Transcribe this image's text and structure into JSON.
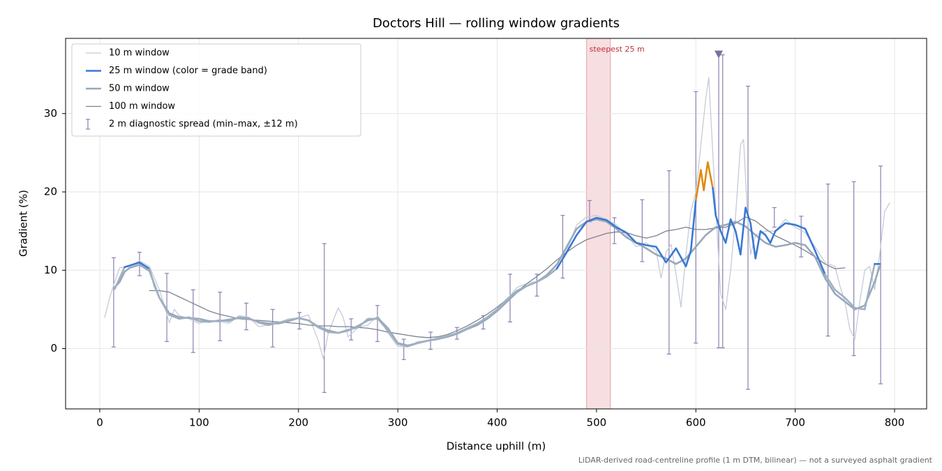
{
  "chart_data": {
    "type": "line",
    "title": "Doctors Hill — rolling window gradients",
    "x_label": "Distance uphill (m)",
    "y_label": "Gradient (%)",
    "note": "LiDAR-derived road-centreline profile (1 m DTM, bilinear) — not a surveyed asphalt gradient",
    "xlim": [
      -34.4,
      832.3
    ],
    "ylim": [
      -7.7,
      39.6
    ],
    "xticks": [
      0,
      100,
      200,
      300,
      400,
      500,
      600,
      700,
      800
    ],
    "yticks": [
      0,
      10,
      20,
      30
    ],
    "grid": true,
    "legend": "upper left",
    "series": [
      {
        "name": "10 m window",
        "color": "#c4cbd6",
        "width": 1.3,
        "x": [
          5,
          10,
          15,
          20,
          30,
          40,
          50,
          55,
          60,
          65,
          70,
          75,
          80,
          90,
          100,
          110,
          120,
          130,
          140,
          150,
          160,
          170,
          180,
          190,
          200,
          210,
          220,
          225,
          230,
          240,
          245,
          250,
          260,
          270,
          280,
          290,
          300,
          310,
          320,
          330,
          340,
          350,
          360,
          370,
          380,
          390,
          400,
          410,
          420,
          430,
          440,
          450,
          460,
          470,
          480,
          490,
          500,
          510,
          520,
          530,
          540,
          550,
          560,
          565,
          570,
          575,
          580,
          585,
          590,
          595,
          600,
          605,
          610,
          613,
          617,
          620,
          625,
          630,
          635,
          640,
          645,
          648,
          652,
          655,
          660,
          670,
          680,
          690,
          700,
          710,
          720,
          730,
          740,
          745,
          750,
          755,
          760,
          765,
          770,
          775,
          780,
          785,
          790,
          795
        ],
        "values": [
          4.0,
          6.5,
          8.5,
          10.3,
          10.5,
          11.2,
          10.5,
          9.0,
          7.5,
          5.5,
          3.3,
          5.0,
          4.2,
          3.8,
          3.2,
          3.6,
          3.5,
          3.2,
          4.2,
          4.0,
          2.8,
          3.0,
          3.3,
          3.8,
          3.9,
          4.3,
          1.0,
          -1.3,
          2.0,
          5.2,
          4.0,
          1.5,
          2.7,
          3.0,
          4.2,
          2.0,
          0.3,
          0.2,
          0.9,
          1.0,
          1.2,
          1.5,
          2.0,
          2.6,
          3.2,
          4.0,
          5.0,
          6.3,
          7.8,
          8.3,
          8.6,
          9.4,
          10.8,
          12.5,
          15.8,
          16.8,
          17.0,
          16.5,
          15.8,
          14.5,
          13.0,
          13.5,
          12.5,
          9.0,
          12.3,
          13.3,
          9.5,
          5.3,
          12.0,
          17.5,
          20.0,
          26.0,
          32.0,
          34.6,
          25.0,
          18.0,
          7.0,
          5.0,
          10.0,
          17.0,
          26.0,
          26.7,
          17.0,
          12.0,
          14.5,
          15.0,
          15.0,
          16.5,
          15.5,
          14.8,
          13.0,
          11.0,
          10.5,
          8.0,
          6.0,
          2.5,
          1.2,
          6.0,
          10.0,
          10.5,
          7.5,
          12.0,
          17.5,
          18.6
        ]
      },
      {
        "name": "25 m window (color = grade band)",
        "color": "#3a78d4",
        "width": 2.6,
        "band_thresholds": [
          10,
          20
        ],
        "band_colors": [
          "#9fb0c2",
          "#3a78d4",
          "#e08a10"
        ],
        "x": [
          15,
          20,
          25,
          30,
          40,
          50,
          55,
          60,
          70,
          80,
          90,
          100,
          110,
          120,
          130,
          140,
          150,
          160,
          170,
          180,
          190,
          200,
          210,
          220,
          230,
          240,
          250,
          260,
          270,
          280,
          290,
          300,
          310,
          320,
          330,
          340,
          350,
          360,
          370,
          380,
          390,
          400,
          410,
          420,
          430,
          440,
          450,
          460,
          470,
          480,
          490,
          500,
          510,
          520,
          530,
          540,
          550,
          560,
          570,
          580,
          590,
          595,
          600,
          605,
          608,
          612,
          617,
          620,
          625,
          630,
          635,
          640,
          645,
          650,
          655,
          660,
          665,
          670,
          675,
          680,
          690,
          700,
          710,
          720,
          730,
          740,
          750,
          760,
          770,
          780,
          785
        ],
        "values": [
          7.6,
          9.0,
          10.4,
          10.6,
          11.0,
          10.2,
          8.0,
          6.5,
          4.3,
          3.8,
          4.0,
          3.5,
          3.4,
          3.6,
          3.5,
          4.0,
          3.9,
          3.3,
          3.0,
          3.3,
          3.6,
          3.9,
          3.6,
          2.7,
          2.1,
          2.0,
          2.4,
          2.7,
          3.8,
          3.8,
          2.3,
          0.6,
          0.3,
          0.7,
          1.0,
          1.3,
          1.6,
          2.0,
          2.6,
          3.2,
          4.0,
          5.0,
          6.3,
          7.4,
          8.0,
          8.5,
          9.2,
          10.2,
          12.3,
          14.5,
          16.2,
          16.7,
          16.4,
          15.5,
          14.8,
          13.5,
          13.2,
          13.0,
          11.0,
          12.8,
          10.5,
          12.5,
          19.0,
          22.8,
          20.2,
          23.8,
          20.5,
          17.0,
          15.0,
          13.5,
          16.5,
          15.0,
          12.0,
          18.0,
          16.0,
          11.5,
          15.0,
          14.5,
          13.5,
          15.0,
          16.0,
          15.8,
          15.3,
          12.5,
          9.5,
          7.5,
          6.5,
          5.2,
          5.0,
          10.8,
          10.8
        ]
      },
      {
        "name": "50 m window",
        "color": "#98a8ba",
        "width": 2.6,
        "x": [
          15,
          20,
          25,
          30,
          40,
          50,
          60,
          70,
          80,
          90,
          100,
          110,
          120,
          130,
          140,
          150,
          160,
          170,
          180,
          190,
          200,
          210,
          220,
          230,
          240,
          250,
          260,
          270,
          280,
          290,
          300,
          310,
          320,
          330,
          340,
          350,
          360,
          370,
          380,
          390,
          400,
          410,
          420,
          430,
          440,
          450,
          460,
          470,
          480,
          490,
          500,
          510,
          520,
          530,
          540,
          550,
          560,
          570,
          580,
          590,
          600,
          610,
          620,
          630,
          640,
          650,
          660,
          670,
          680,
          690,
          700,
          710,
          720,
          730,
          740,
          750,
          760,
          770,
          780,
          785
        ],
        "values": [
          7.8,
          8.5,
          9.8,
          10.3,
          10.7,
          9.9,
          6.5,
          4.5,
          4.0,
          3.9,
          3.8,
          3.5,
          3.5,
          3.7,
          3.9,
          3.8,
          3.4,
          3.2,
          3.2,
          3.5,
          3.9,
          3.6,
          2.8,
          2.3,
          2.0,
          2.3,
          2.9,
          3.6,
          3.9,
          2.6,
          0.7,
          0.4,
          0.7,
          1.0,
          1.2,
          1.5,
          1.9,
          2.5,
          3.0,
          3.8,
          4.8,
          6.0,
          7.2,
          8.0,
          8.5,
          9.4,
          10.7,
          13.0,
          15.3,
          16.2,
          16.5,
          16.2,
          15.3,
          14.2,
          13.5,
          12.8,
          12.0,
          11.5,
          10.8,
          11.5,
          13.0,
          14.5,
          15.5,
          15.8,
          16.2,
          15.6,
          14.5,
          13.5,
          13.0,
          13.2,
          13.5,
          13.2,
          11.7,
          9.0,
          7.0,
          6.0,
          5.0,
          5.5,
          8.5,
          10.5
        ]
      },
      {
        "name": "100 m window",
        "color": "#7b8290",
        "width": 1.3,
        "x": [
          50,
          60,
          70,
          80,
          90,
          100,
          110,
          120,
          130,
          140,
          150,
          160,
          170,
          180,
          190,
          200,
          210,
          220,
          230,
          240,
          250,
          260,
          270,
          280,
          290,
          300,
          310,
          320,
          330,
          340,
          350,
          360,
          370,
          380,
          390,
          400,
          410,
          420,
          430,
          440,
          450,
          460,
          470,
          480,
          490,
          500,
          510,
          520,
          530,
          540,
          550,
          560,
          570,
          580,
          590,
          600,
          610,
          620,
          630,
          640,
          650,
          660,
          670,
          680,
          690,
          700,
          710,
          720,
          730,
          740,
          750
        ],
        "values": [
          7.4,
          7.4,
          7.2,
          6.6,
          6.0,
          5.4,
          4.8,
          4.4,
          4.1,
          3.8,
          3.7,
          3.6,
          3.5,
          3.4,
          3.3,
          3.2,
          3.0,
          2.9,
          2.9,
          2.8,
          2.8,
          2.7,
          2.6,
          2.4,
          2.1,
          1.9,
          1.7,
          1.5,
          1.4,
          1.5,
          1.8,
          2.3,
          2.9,
          3.6,
          4.4,
          5.3,
          6.3,
          7.3,
          8.3,
          9.2,
          10.2,
          11.3,
          12.3,
          13.2,
          13.9,
          14.3,
          14.7,
          14.9,
          14.8,
          14.4,
          14.1,
          14.4,
          15.0,
          15.2,
          15.5,
          15.2,
          15.2,
          15.4,
          15.5,
          16.0,
          16.8,
          16.3,
          15.3,
          14.4,
          13.8,
          13.2,
          12.5,
          11.7,
          10.8,
          10.2,
          10.3
        ]
      }
    ],
    "errorbars": {
      "name": "2 m diagnostic spread (min–max, ±12 m)",
      "color": "#8a80b0",
      "x": [
        14,
        40,
        67.5,
        94,
        121,
        147.5,
        174,
        201,
        226,
        253,
        279.5,
        306,
        333,
        359.5,
        386,
        413,
        440,
        466,
        493,
        518,
        546,
        573,
        600,
        623,
        627,
        652.5,
        679,
        706,
        733,
        759,
        786
      ],
      "low": [
        0.2,
        9.3,
        0.9,
        -0.5,
        1.0,
        2.4,
        0.2,
        2.5,
        -5.6,
        1.1,
        0.9,
        -1.4,
        -0.1,
        1.2,
        2.5,
        3.4,
        6.7,
        9.0,
        16.2,
        13.4,
        11.1,
        -0.7,
        0.7,
        0.1,
        0.1,
        -5.2,
        15.5,
        11.7,
        1.6,
        -0.9,
        -4.5
      ],
      "high": [
        11.6,
        12.3,
        9.6,
        7.5,
        7.2,
        5.8,
        5.0,
        4.6,
        13.4,
        3.8,
        5.5,
        1.2,
        2.1,
        2.7,
        4.2,
        9.5,
        9.5,
        17.0,
        18.9,
        16.7,
        19.0,
        22.7,
        32.8,
        37.5,
        37.5,
        33.5,
        18.0,
        16.9,
        21.0,
        21.3,
        23.3
      ]
    },
    "highlight": {
      "label": "steepest 25 m",
      "x_range": [
        490,
        514
      ],
      "color": "#e8a0a8"
    },
    "peak_marker": {
      "x": 623,
      "y": 37.6,
      "color": "#7a6fa0"
    }
  }
}
